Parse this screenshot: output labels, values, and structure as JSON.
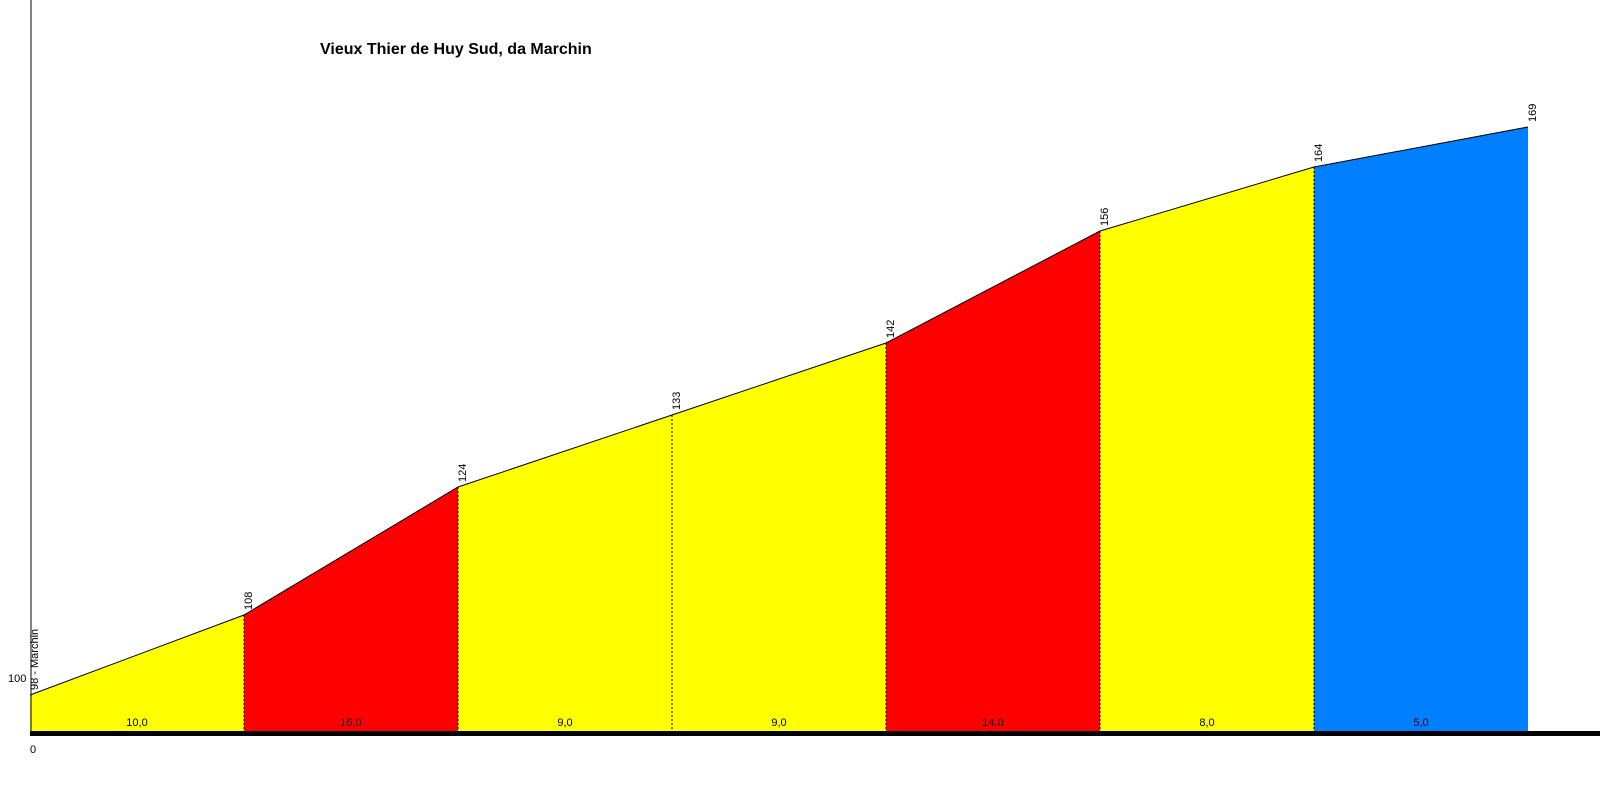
{
  "chart_data": {
    "type": "area",
    "title": "Vieux Thier de Huy Sud, da Marchin",
    "xlabel": "",
    "ylabel": "",
    "x_tick_labels": [
      "0"
    ],
    "y_tick_labels": [
      "100"
    ],
    "start_label": "98 - Marchin",
    "grid": false,
    "legend": "none",
    "segment_gradients": [
      "10,0",
      "16,0",
      "9,0",
      "9,0",
      "14,0",
      "8,0",
      "5,0"
    ],
    "altitudes": [
      98,
      108,
      124,
      133,
      142,
      156,
      164,
      169
    ],
    "segment_colors": [
      "#ffff00",
      "#ff0000",
      "#ffff00",
      "#ffff00",
      "#ff0000",
      "#ffff00",
      "#0080ff"
    ]
  }
}
